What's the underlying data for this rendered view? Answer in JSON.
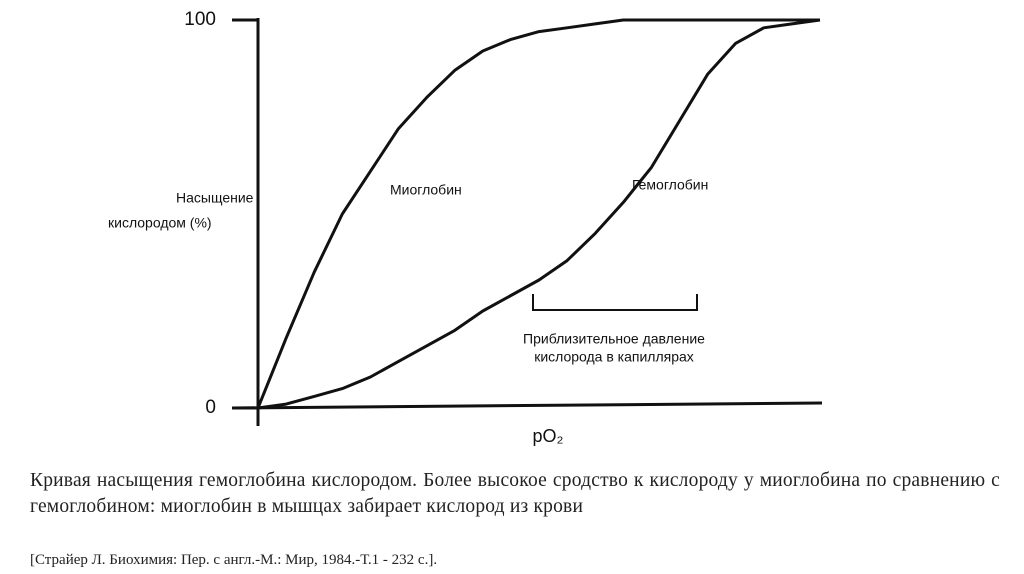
{
  "chart_data": {
    "type": "line",
    "y_label": [
      "Насыщение",
      "кислородом (%)"
    ],
    "x_label": "pO₂",
    "x": [
      0,
      5,
      10,
      15,
      20,
      25,
      30,
      35,
      40,
      45,
      50,
      55,
      60,
      65,
      70,
      75,
      80,
      85,
      90,
      95,
      100
    ],
    "xlim": [
      0,
      100
    ],
    "ylim": [
      0,
      100
    ],
    "yticks": [
      0,
      100
    ],
    "grid": false,
    "series": [
      {
        "name": "Миоглобин",
        "color": "#111111",
        "values": [
          0,
          18,
          35,
          50,
          61,
          72,
          80,
          87,
          92,
          95,
          97,
          98,
          99,
          100,
          100,
          100,
          100,
          100,
          100,
          100,
          100
        ]
      },
      {
        "name": "Гемоглобин",
        "color": "#111111",
        "values": [
          0,
          1,
          3,
          5,
          8,
          12,
          16,
          20,
          25,
          29,
          33,
          38,
          45,
          53,
          62,
          74,
          86,
          94,
          98,
          99,
          100
        ]
      }
    ],
    "annotation": [
      "Приблизительное давление",
      "кислорода в капиллярах"
    ]
  },
  "caption": "Кривая насыщения гемоглобина кислородом. Более высокое сродство к кислороду у миоглобина по сравнению с гемоглобином: миоглобин в мышцах забирает кислород из крови",
  "source": "[Страйер Л. Биохимия: Пер. с англ.-М.: Мир, 1984.-Т.1 - 232 с.]."
}
